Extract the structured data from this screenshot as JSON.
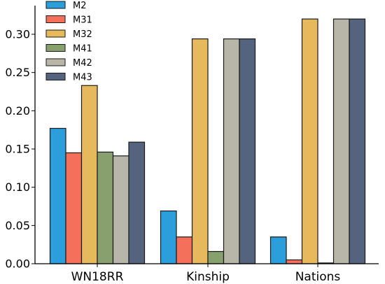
{
  "chart_data": {
    "type": "bar",
    "title": "",
    "xlabel": "",
    "ylabel": "",
    "categories": [
      "WN18RR",
      "Kinship",
      "Nations"
    ],
    "ylim": [
      0,
      0.34
    ],
    "yticks": [
      0.0,
      0.05,
      0.1,
      0.15,
      0.2,
      0.25,
      0.3
    ],
    "ytick_labels": [
      "0.00",
      "0.05",
      "0.10",
      "0.15",
      "0.20",
      "0.25",
      "0.30"
    ],
    "grid": false,
    "legend_position": "top-left",
    "series": [
      {
        "name": "M2",
        "color": "#2C9EDB",
        "values": [
          0.177,
          0.069,
          0.035
        ]
      },
      {
        "name": "M31",
        "color": "#F4705A",
        "values": [
          0.145,
          0.035,
          0.005
        ]
      },
      {
        "name": "M32",
        "color": "#E6BA5C",
        "values": [
          0.233,
          0.294,
          0.32
        ]
      },
      {
        "name": "M41",
        "color": "#87A06D",
        "values": [
          0.146,
          0.016,
          0.001
        ]
      },
      {
        "name": "M42",
        "color": "#B8B6A8",
        "values": [
          0.141,
          0.294,
          0.32
        ]
      },
      {
        "name": "M43",
        "color": "#55647E",
        "values": [
          0.159,
          0.294,
          0.32
        ]
      }
    ]
  }
}
